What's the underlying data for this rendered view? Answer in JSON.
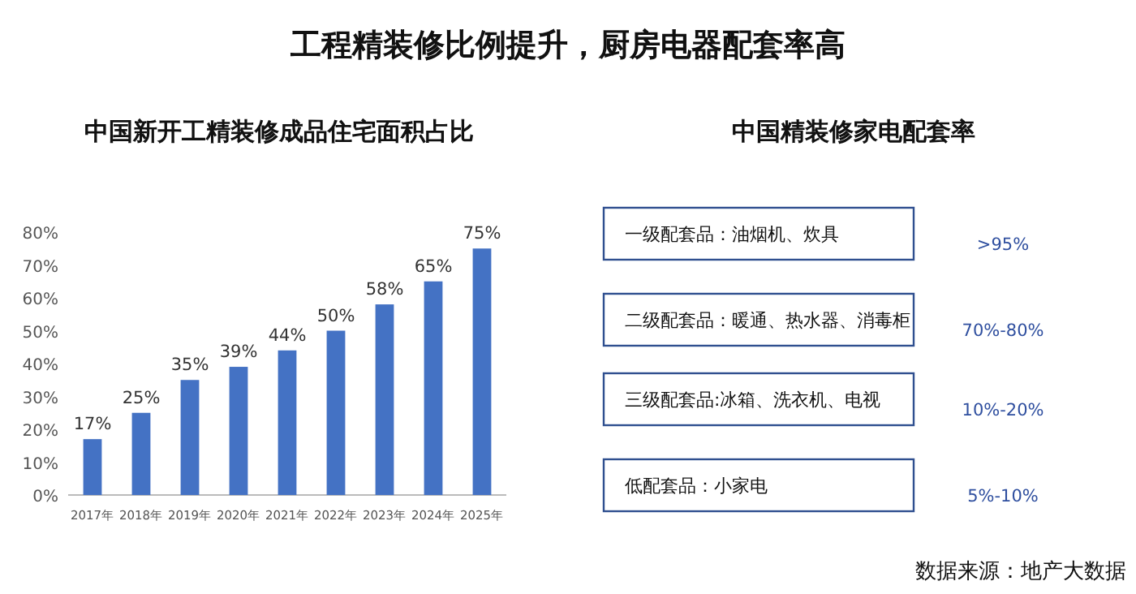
{
  "chart_data": [
    {
      "type": "bar",
      "title": "工程精装修比例提升，厨房电器配套率高",
      "subtitle": "中国新开工精装修成品住宅面积占比",
      "categories": [
        "2017年",
        "2018年",
        "2019年",
        "2020年",
        "2021年",
        "2022年",
        "2023年",
        "2024年",
        "2025年"
      ],
      "values": [
        17,
        25,
        35,
        39,
        44,
        50,
        58,
        65,
        75
      ],
      "value_labels": [
        "17%",
        "25%",
        "35%",
        "39%",
        "44%",
        "50%",
        "58%",
        "65%",
        "75%"
      ],
      "color": "#4472c4",
      "ylim": [
        0,
        80
      ],
      "yticks": [
        {
          "value": 0,
          "label": "0%"
        },
        {
          "value": 10,
          "label": "10%"
        },
        {
          "value": 20,
          "label": "20%"
        },
        {
          "value": 30,
          "label": "30%"
        },
        {
          "value": 40,
          "label": "40%"
        },
        {
          "value": 50,
          "label": "50%"
        },
        {
          "value": 60,
          "label": "60%"
        },
        {
          "value": 70,
          "label": "70%"
        },
        {
          "value": 80,
          "label": "80%"
        }
      ]
    },
    {
      "type": "other",
      "title": "中国精装修家电配套率",
      "annotations": [
        "一级配套品：油烟机、炊具",
        "二级配套品：暖通、热水器、消毒柜",
        "三级配套品:冰箱、洗衣机、电视",
        "低配套品：小家电",
        ">95%",
        "70%-80%",
        "10%-20%",
        "5%-10%",
        "数据来源：地产大数据"
      ]
    }
  ]
}
